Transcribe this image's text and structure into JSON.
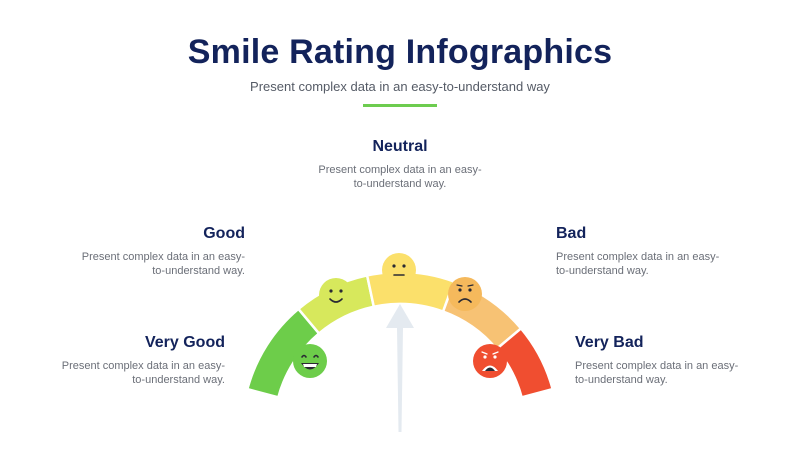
{
  "header": {
    "title": "Smile Rating Infographics",
    "subtitle": "Present complex data in an easy-to-understand way"
  },
  "ratings": [
    {
      "id": "very-good",
      "title": "Very Good",
      "desc_line1": "Present complex data in an easy-",
      "desc_line2": "to-understand way.",
      "color": "#6dcd4a",
      "face_color": "#6dcd4a",
      "mood": "very-happy"
    },
    {
      "id": "good",
      "title": "Good",
      "desc_line1": "Present complex data in an easy-",
      "desc_line2": "to-understand way.",
      "color": "#d7e85c",
      "face_color": "#d7e85c",
      "mood": "happy"
    },
    {
      "id": "neutral",
      "title": "Neutral",
      "desc_line1": "Present complex data in an easy-",
      "desc_line2": "to-understand way.",
      "color": "#fbe06b",
      "face_color": "#fbe06b",
      "mood": "neutral"
    },
    {
      "id": "bad",
      "title": "Bad",
      "desc_line1": "Present complex data in an easy-",
      "desc_line2": "to-understand way.",
      "color": "#f7c274",
      "face_color": "#f5b95c",
      "mood": "sad"
    },
    {
      "id": "very-bad",
      "title": "Very Bad",
      "desc_line1": "Present complex data in an easy-",
      "desc_line2": "to-understand way.",
      "color": "#f04e30",
      "face_color": "#f04e30",
      "mood": "very-sad"
    }
  ],
  "pointer_color": "#e4eaf0",
  "accent_color": "#6dcc4f"
}
